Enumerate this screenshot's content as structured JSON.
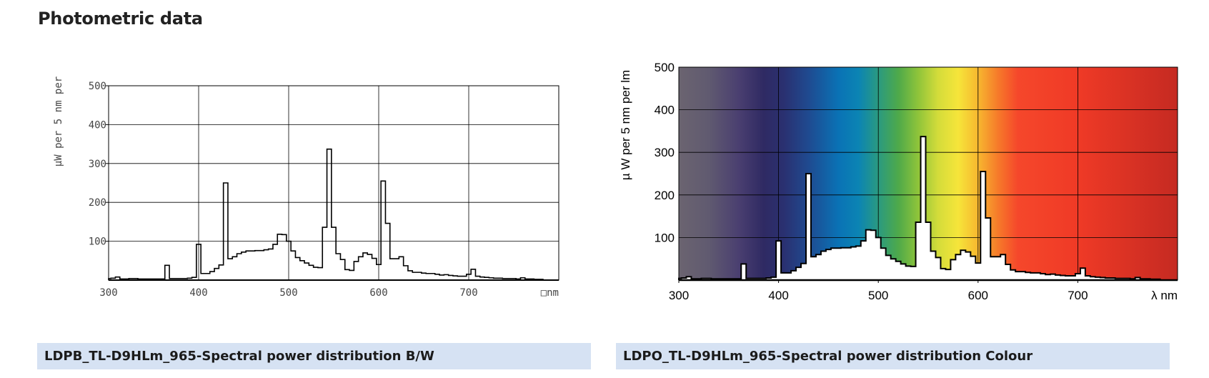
{
  "page": {
    "title": "Photometric data"
  },
  "captions": {
    "bw": "LDPB_TL-D9HLm_965-Spectral power distribution B/W",
    "colour": "LDPO_TL-D9HLm_965-Spectral power distribution Colour"
  },
  "chart_data": [
    {
      "type": "line",
      "variant": "bw",
      "title": "",
      "ylabel": "µW per 5 nm per",
      "xlabel": "□nm",
      "xlim": [
        300,
        800
      ],
      "ylim": [
        0,
        500
      ],
      "x_ticks": [
        300,
        400,
        500,
        600,
        700
      ],
      "y_ticks": [
        100,
        200,
        300,
        400,
        500
      ],
      "grid": true,
      "series": [
        {
          "x": [
            300,
            305,
            310,
            315,
            320,
            325,
            330,
            335,
            340,
            345,
            350,
            355,
            360,
            365,
            370,
            375,
            380,
            385,
            390,
            395,
            400,
            405,
            410,
            415,
            420,
            425,
            430,
            435,
            440,
            445,
            450,
            455,
            460,
            465,
            470,
            475,
            480,
            485,
            490,
            495,
            500,
            505,
            510,
            515,
            520,
            525,
            530,
            535,
            540,
            545,
            550,
            555,
            560,
            565,
            570,
            575,
            580,
            585,
            590,
            595,
            600,
            605,
            610,
            615,
            620,
            625,
            630,
            635,
            640,
            645,
            650,
            655,
            660,
            665,
            670,
            675,
            680,
            685,
            690,
            695,
            700,
            705,
            710,
            715,
            720,
            725,
            730,
            735,
            740,
            745,
            750,
            755,
            760,
            765,
            770,
            775,
            780
          ],
          "values": [
            4,
            5,
            8,
            3,
            3,
            4,
            4,
            3,
            3,
            3,
            3,
            3,
            3,
            38,
            4,
            4,
            4,
            4,
            5,
            7,
            92,
            17,
            17,
            22,
            30,
            39,
            250,
            55,
            60,
            68,
            72,
            75,
            75,
            76,
            76,
            78,
            80,
            92,
            118,
            117,
            100,
            75,
            58,
            50,
            44,
            38,
            33,
            32,
            136,
            337,
            136,
            68,
            53,
            27,
            25,
            48,
            60,
            70,
            66,
            56,
            40,
            255,
            146,
            55,
            55,
            60,
            37,
            24,
            20,
            20,
            18,
            17,
            17,
            15,
            13,
            14,
            12,
            11,
            10,
            10,
            15,
            28,
            10,
            8,
            7,
            6,
            5,
            5,
            4,
            4,
            4,
            3,
            6,
            3,
            3,
            2,
            2
          ]
        }
      ]
    },
    {
      "type": "line",
      "variant": "colour",
      "title": "",
      "ylabel": "µ W per 5 nm per lm",
      "xlabel": "λ nm",
      "xlim": [
        300,
        800
      ],
      "ylim": [
        0,
        500
      ],
      "x_ticks": [
        300,
        400,
        500,
        600,
        700
      ],
      "y_ticks": [
        100,
        200,
        300,
        400,
        500
      ],
      "grid": true,
      "background": "visible spectrum gradient",
      "series": [
        {
          "x": [
            300,
            305,
            310,
            315,
            320,
            325,
            330,
            335,
            340,
            345,
            350,
            355,
            360,
            365,
            370,
            375,
            380,
            385,
            390,
            395,
            400,
            405,
            410,
            415,
            420,
            425,
            430,
            435,
            440,
            445,
            450,
            455,
            460,
            465,
            470,
            475,
            480,
            485,
            490,
            495,
            500,
            505,
            510,
            515,
            520,
            525,
            530,
            535,
            540,
            545,
            550,
            555,
            560,
            565,
            570,
            575,
            580,
            585,
            590,
            595,
            600,
            605,
            610,
            615,
            620,
            625,
            630,
            635,
            640,
            645,
            650,
            655,
            660,
            665,
            670,
            675,
            680,
            685,
            690,
            695,
            700,
            705,
            710,
            715,
            720,
            725,
            730,
            735,
            740,
            745,
            750,
            755,
            760,
            765,
            770,
            775,
            780
          ],
          "values": [
            4,
            5,
            8,
            3,
            3,
            4,
            4,
            3,
            3,
            3,
            3,
            3,
            3,
            38,
            4,
            4,
            4,
            4,
            5,
            7,
            92,
            17,
            17,
            22,
            30,
            39,
            250,
            55,
            60,
            68,
            72,
            75,
            75,
            76,
            76,
            78,
            80,
            92,
            118,
            117,
            100,
            75,
            58,
            50,
            44,
            38,
            33,
            32,
            136,
            337,
            136,
            68,
            53,
            27,
            25,
            48,
            60,
            70,
            66,
            56,
            40,
            255,
            146,
            55,
            55,
            60,
            37,
            24,
            20,
            20,
            18,
            17,
            17,
            15,
            13,
            14,
            12,
            11,
            10,
            10,
            15,
            28,
            10,
            8,
            7,
            6,
            5,
            5,
            4,
            4,
            4,
            3,
            6,
            3,
            3,
            2,
            2
          ]
        }
      ]
    }
  ]
}
